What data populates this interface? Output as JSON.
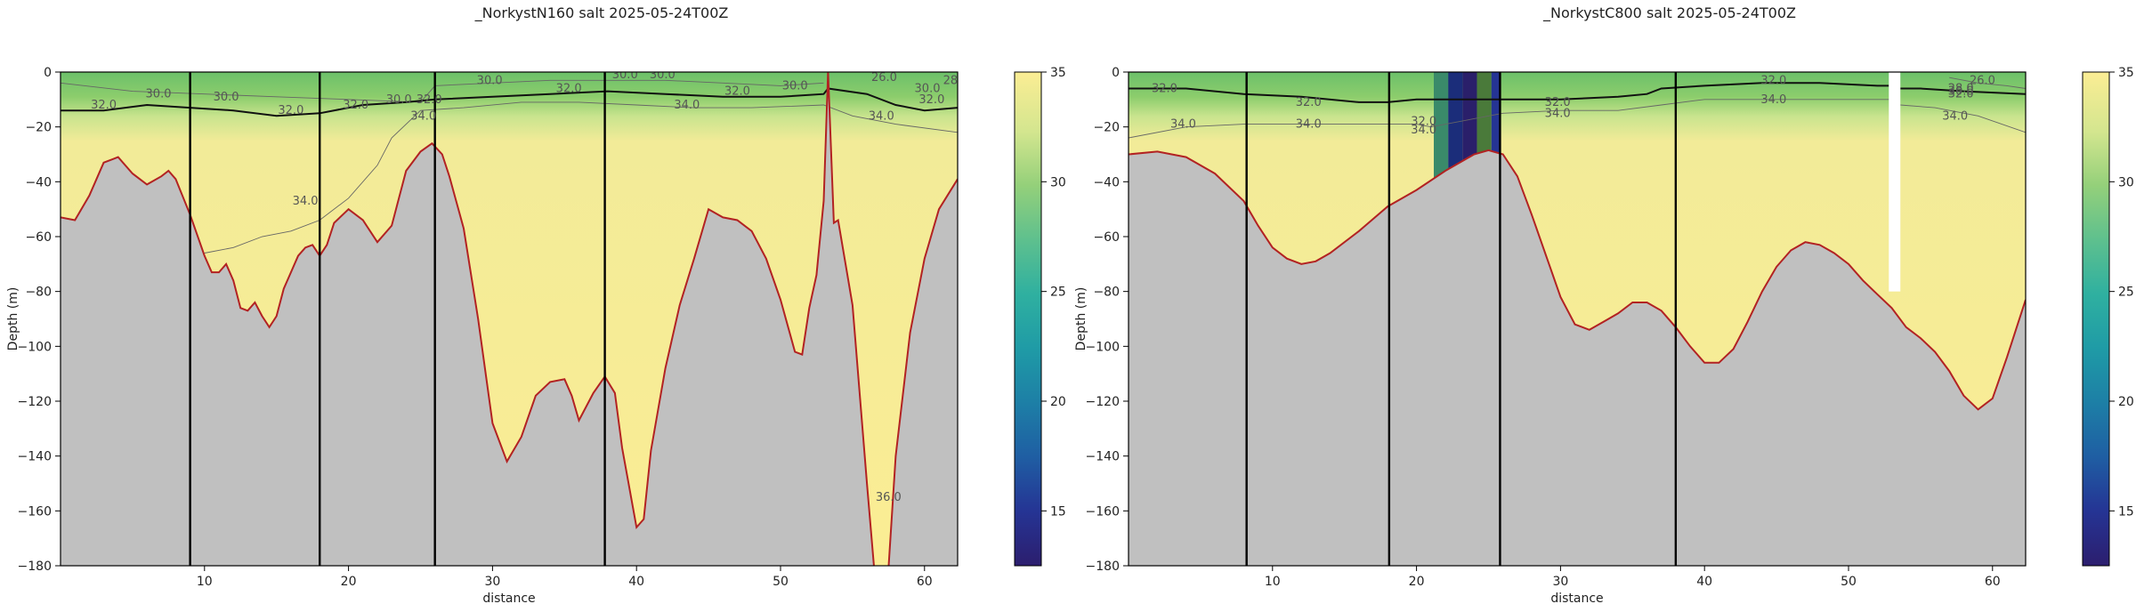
{
  "chart_data": [
    {
      "type": "heatmap",
      "title": "_NorkystN160 salt 2025-05-24T00Z",
      "xlabel": "distance",
      "ylabel": "Depth (m)",
      "xlim": [
        0,
        62.3
      ],
      "ylim": [
        -180,
        0
      ],
      "xticks": [
        10,
        20,
        30,
        40,
        50,
        60
      ],
      "yticks": [
        0,
        -20,
        -40,
        -60,
        -80,
        -100,
        -120,
        -140,
        -160,
        -180
      ],
      "colorbar": {
        "min": 12.5,
        "max": 35,
        "ticks": [
          15,
          20,
          25,
          30,
          35
        ],
        "colors": [
          "#2c1e6e",
          "#253494",
          "#1f6ea3",
          "#1e8c9e",
          "#41b6c4",
          "#7fcdbb",
          "#a1d99b",
          "#c7e9b4",
          "#edf5a8",
          "#fbed94"
        ]
      },
      "section_lines_x": [
        9,
        18,
        26,
        37.8
      ],
      "seafloor": [
        [
          0,
          -53
        ],
        [
          1,
          -54
        ],
        [
          2,
          -45
        ],
        [
          3,
          -33
        ],
        [
          4,
          -31
        ],
        [
          5,
          -37
        ],
        [
          6,
          -41
        ],
        [
          7,
          -38
        ],
        [
          7.5,
          -36
        ],
        [
          8,
          -39
        ],
        [
          9,
          -52
        ],
        [
          10,
          -67
        ],
        [
          10.5,
          -73
        ],
        [
          11,
          -73
        ],
        [
          11.5,
          -70
        ],
        [
          12,
          -76
        ],
        [
          12.5,
          -86
        ],
        [
          13,
          -87
        ],
        [
          13.5,
          -84
        ],
        [
          14,
          -89
        ],
        [
          14.5,
          -93
        ],
        [
          15,
          -89
        ],
        [
          15.5,
          -79
        ],
        [
          16,
          -73
        ],
        [
          16.5,
          -67
        ],
        [
          17,
          -64
        ],
        [
          17.5,
          -63
        ],
        [
          18,
          -67
        ],
        [
          18.5,
          -63
        ],
        [
          19,
          -55
        ],
        [
          20,
          -50
        ],
        [
          21,
          -54
        ],
        [
          22,
          -62
        ],
        [
          23,
          -56
        ],
        [
          24,
          -36
        ],
        [
          25,
          -29
        ],
        [
          25.8,
          -26
        ],
        [
          26.5,
          -30
        ],
        [
          27,
          -38
        ],
        [
          28,
          -57
        ],
        [
          29,
          -90
        ],
        [
          30,
          -128
        ],
        [
          31,
          -142
        ],
        [
          32,
          -133
        ],
        [
          33,
          -118
        ],
        [
          34,
          -113
        ],
        [
          35,
          -112
        ],
        [
          35.5,
          -118
        ],
        [
          36,
          -127
        ],
        [
          37,
          -117
        ],
        [
          37.8,
          -111
        ],
        [
          38.5,
          -117
        ],
        [
          39,
          -137
        ],
        [
          40,
          -166
        ],
        [
          40.5,
          -163
        ],
        [
          41,
          -138
        ],
        [
          42,
          -108
        ],
        [
          43,
          -85
        ],
        [
          44,
          -68
        ],
        [
          45,
          -50
        ],
        [
          46,
          -53
        ],
        [
          47,
          -54
        ],
        [
          48,
          -58
        ],
        [
          49,
          -68
        ],
        [
          50,
          -83
        ],
        [
          51,
          -102
        ],
        [
          51.5,
          -103
        ],
        [
          52,
          -86
        ],
        [
          52.5,
          -74
        ],
        [
          53,
          -47
        ],
        [
          53.3,
          0
        ],
        [
          53.7,
          -55
        ],
        [
          54,
          -54
        ],
        [
          55,
          -85
        ],
        [
          56,
          -150
        ],
        [
          56.5,
          -181
        ],
        [
          57.5,
          -181
        ],
        [
          58,
          -140
        ],
        [
          59,
          -95
        ],
        [
          60,
          -68
        ],
        [
          61,
          -50
        ],
        [
          62.3,
          -39
        ]
      ],
      "contours": [
        {
          "level": 30.0,
          "bold": false,
          "points": [
            [
              0,
              -4
            ],
            [
              5,
              -7
            ],
            [
              10,
              -8
            ],
            [
              15,
              -9
            ],
            [
              20,
              -10
            ],
            [
              25,
              -11
            ],
            [
              26,
              -5
            ],
            [
              30,
              -4
            ],
            [
              34,
              -3
            ],
            [
              38,
              -3
            ],
            [
              42,
              -3
            ],
            [
              46,
              -4
            ],
            [
              50,
              -5
            ],
            [
              53,
              -4
            ]
          ]
        },
        {
          "level": 32.0,
          "bold": true,
          "points": [
            [
              0,
              -14
            ],
            [
              3,
              -14
            ],
            [
              6,
              -12
            ],
            [
              9,
              -13
            ],
            [
              12,
              -14
            ],
            [
              15,
              -16
            ],
            [
              18,
              -15
            ],
            [
              21,
              -12
            ],
            [
              24,
              -11
            ],
            [
              26,
              -10
            ],
            [
              30,
              -9
            ],
            [
              34,
              -8
            ],
            [
              38,
              -7
            ],
            [
              42,
              -8
            ],
            [
              46,
              -9
            ],
            [
              50,
              -9
            ],
            [
              53,
              -8
            ],
            [
              53.3,
              -6
            ],
            [
              56,
              -8
            ],
            [
              58,
              -12
            ],
            [
              60,
              -14
            ],
            [
              62.3,
              -13
            ]
          ]
        },
        {
          "level": 34.0,
          "bold": false,
          "points": [
            [
              10,
              -66
            ],
            [
              12,
              -64
            ],
            [
              14,
              -60
            ],
            [
              16,
              -58
            ],
            [
              18,
              -54
            ],
            [
              20,
              -46
            ],
            [
              22,
              -34
            ],
            [
              23,
              -24
            ],
            [
              25,
              -14
            ],
            [
              28,
              -13
            ],
            [
              32,
              -11
            ],
            [
              36,
              -11
            ],
            [
              40,
              -12
            ],
            [
              44,
              -13
            ],
            [
              48,
              -13
            ],
            [
              53,
              -12
            ],
            [
              55,
              -16
            ],
            [
              58,
              -19
            ],
            [
              62.3,
              -22
            ]
          ]
        }
      ],
      "contour_labels": [
        {
          "text": "30.0",
          "x": 6.8,
          "y": -8
        },
        {
          "text": "30.0",
          "x": 11.5,
          "y": -9
        },
        {
          "text": "32.0",
          "x": 3,
          "y": -12
        },
        {
          "text": "32.0",
          "x": 16,
          "y": -14
        },
        {
          "text": "32.0",
          "x": 20.5,
          "y": -12
        },
        {
          "text": "30.0",
          "x": 23.5,
          "y": -10
        },
        {
          "text": "32.0",
          "x": 25.6,
          "y": -10
        },
        {
          "text": "34.0",
          "x": 25.2,
          "y": -16
        },
        {
          "text": "30.0",
          "x": 29.8,
          "y": -3
        },
        {
          "text": "30.0",
          "x": 39.2,
          "y": -1
        },
        {
          "text": "30.0",
          "x": 41.8,
          "y": -1
        },
        {
          "text": "32.0",
          "x": 35.3,
          "y": -6
        },
        {
          "text": "34.0",
          "x": 43.5,
          "y": -12
        },
        {
          "text": "32.0",
          "x": 47,
          "y": -7
        },
        {
          "text": "30.0",
          "x": 51,
          "y": -5
        },
        {
          "text": "34.0",
          "x": 17,
          "y": -47
        },
        {
          "text": "26.0",
          "x": 57.2,
          "y": -2
        },
        {
          "text": "30.0",
          "x": 60.2,
          "y": -6
        },
        {
          "text": "32.0",
          "x": 60.5,
          "y": -10
        },
        {
          "text": "28",
          "x": 61.8,
          "y": -3
        },
        {
          "text": "34.0",
          "x": 57,
          "y": -16
        },
        {
          "text": "36.0",
          "x": 57.5,
          "y": -155
        }
      ]
    },
    {
      "type": "heatmap",
      "title": "_NorkystC800 salt 2025-05-24T00Z",
      "xlabel": "distance",
      "ylabel": "Depth (m)",
      "xlim": [
        0,
        62.3
      ],
      "ylim": [
        -180,
        0
      ],
      "xticks": [
        10,
        20,
        30,
        40,
        50,
        60
      ],
      "yticks": [
        0,
        -20,
        -40,
        -60,
        -80,
        -100,
        -120,
        -140,
        -160,
        -180
      ],
      "colorbar": {
        "min": 12.5,
        "max": 35,
        "ticks": [
          15,
          20,
          25,
          30,
          35
        ],
        "colors": [
          "#2c1e6e",
          "#253494",
          "#1f6ea3",
          "#1e8c9e",
          "#41b6c4",
          "#7fcdbb",
          "#a1d99b",
          "#c7e9b4",
          "#edf5a8",
          "#fbed94"
        ]
      },
      "section_lines_x": [
        8.2,
        18.1,
        25.8,
        38
      ],
      "missing_x": [
        [
          52.8,
          53.6
        ]
      ],
      "blue_columns": [
        [
          21.2,
          22.2,
          "#3a8a6a"
        ],
        [
          22.2,
          23.2,
          "#1b2d7a"
        ],
        [
          23.2,
          24.2,
          "#2a1f6a"
        ],
        [
          24.2,
          25.2,
          "#4a7a3a"
        ],
        [
          25.2,
          25.8,
          "#253494"
        ]
      ],
      "seafloor": [
        [
          0,
          -30
        ],
        [
          2,
          -29
        ],
        [
          4,
          -31
        ],
        [
          6,
          -37
        ],
        [
          8,
          -47
        ],
        [
          9,
          -56
        ],
        [
          10,
          -64
        ],
        [
          11,
          -68
        ],
        [
          12,
          -70
        ],
        [
          13,
          -69
        ],
        [
          14,
          -66
        ],
        [
          16,
          -58
        ],
        [
          18,
          -49
        ],
        [
          20,
          -43
        ],
        [
          22,
          -36
        ],
        [
          24,
          -30
        ],
        [
          25,
          -28.5
        ],
        [
          26,
          -30
        ],
        [
          27,
          -38
        ],
        [
          28,
          -52
        ],
        [
          29,
          -67
        ],
        [
          30,
          -82
        ],
        [
          31,
          -92
        ],
        [
          32,
          -94
        ],
        [
          33,
          -91
        ],
        [
          34,
          -88
        ],
        [
          35,
          -84
        ],
        [
          36,
          -84
        ],
        [
          37,
          -87
        ],
        [
          38,
          -93
        ],
        [
          39,
          -100
        ],
        [
          40,
          -106
        ],
        [
          41,
          -106
        ],
        [
          42,
          -101
        ],
        [
          43,
          -91
        ],
        [
          44,
          -80
        ],
        [
          45,
          -71
        ],
        [
          46,
          -65
        ],
        [
          47,
          -62
        ],
        [
          48,
          -63
        ],
        [
          49,
          -66
        ],
        [
          50,
          -70
        ],
        [
          51,
          -76
        ],
        [
          52,
          -81
        ],
        [
          53,
          -86
        ],
        [
          54,
          -93
        ],
        [
          55,
          -97
        ],
        [
          56,
          -102
        ],
        [
          57,
          -109
        ],
        [
          58,
          -118
        ],
        [
          59,
          -123
        ],
        [
          60,
          -119
        ],
        [
          61,
          -104
        ],
        [
          62.3,
          -83
        ]
      ],
      "contours": [
        {
          "level": 32.0,
          "bold": true,
          "points": [
            [
              0,
              -6
            ],
            [
              4,
              -6
            ],
            [
              8,
              -8
            ],
            [
              12,
              -9
            ],
            [
              16,
              -11
            ],
            [
              18,
              -11
            ],
            [
              20,
              -10
            ],
            [
              21,
              -10
            ],
            [
              26,
              -10
            ],
            [
              30,
              -10
            ],
            [
              34,
              -9
            ],
            [
              36,
              -8
            ],
            [
              37,
              -6
            ],
            [
              40,
              -5
            ],
            [
              44,
              -4
            ],
            [
              48,
              -4
            ],
            [
              52,
              -5
            ],
            [
              52.8,
              -5
            ]
          ]
        },
        {
          "level": 32.0,
          "bold": true,
          "points": [
            [
              53.6,
              -6
            ],
            [
              55,
              -6
            ],
            [
              58,
              -7
            ],
            [
              62.3,
              -8
            ]
          ]
        },
        {
          "level": 34.0,
          "bold": false,
          "points": [
            [
              0,
              -24
            ],
            [
              4,
              -20
            ],
            [
              8,
              -19
            ],
            [
              12,
              -19
            ],
            [
              16,
              -19
            ],
            [
              20,
              -19
            ],
            [
              21,
              -20
            ],
            [
              26,
              -15
            ],
            [
              30,
              -14
            ],
            [
              34,
              -14
            ],
            [
              37,
              -12
            ],
            [
              40,
              -10
            ],
            [
              44,
              -10
            ],
            [
              48,
              -10
            ],
            [
              52.8,
              -10
            ]
          ]
        },
        {
          "level": 34.0,
          "bold": false,
          "points": [
            [
              53.6,
              -12
            ],
            [
              56,
              -13
            ],
            [
              59,
              -16
            ],
            [
              62.3,
              -22
            ]
          ]
        },
        {
          "level": 30.0,
          "bold": false,
          "points": [
            [
              57,
              -2
            ],
            [
              59,
              -4
            ],
            [
              61,
              -5
            ],
            [
              62.3,
              -6
            ]
          ]
        }
      ],
      "contour_labels": [
        {
          "text": "32.0",
          "x": 2.5,
          "y": -6
        },
        {
          "text": "32.0",
          "x": 12.5,
          "y": -11
        },
        {
          "text": "34.0",
          "x": 3.8,
          "y": -19
        },
        {
          "text": "34.0",
          "x": 12.5,
          "y": -19
        },
        {
          "text": "32.0",
          "x": 20.5,
          "y": -18
        },
        {
          "text": "34.0",
          "x": 20.5,
          "y": -21
        },
        {
          "text": "32.0",
          "x": 29.8,
          "y": -11
        },
        {
          "text": "34.0",
          "x": 29.8,
          "y": -15
        },
        {
          "text": "32.0",
          "x": 44.8,
          "y": -3
        },
        {
          "text": "34.0",
          "x": 44.8,
          "y": -10
        },
        {
          "text": "26.0",
          "x": 59.3,
          "y": -3
        },
        {
          "text": "28.0",
          "x": 57.8,
          "y": -6
        },
        {
          "text": "30.0",
          "x": 57.8,
          "y": -7
        },
        {
          "text": "32.0",
          "x": 57.8,
          "y": -8
        },
        {
          "text": "34.0",
          "x": 57.4,
          "y": -16
        }
      ]
    }
  ]
}
